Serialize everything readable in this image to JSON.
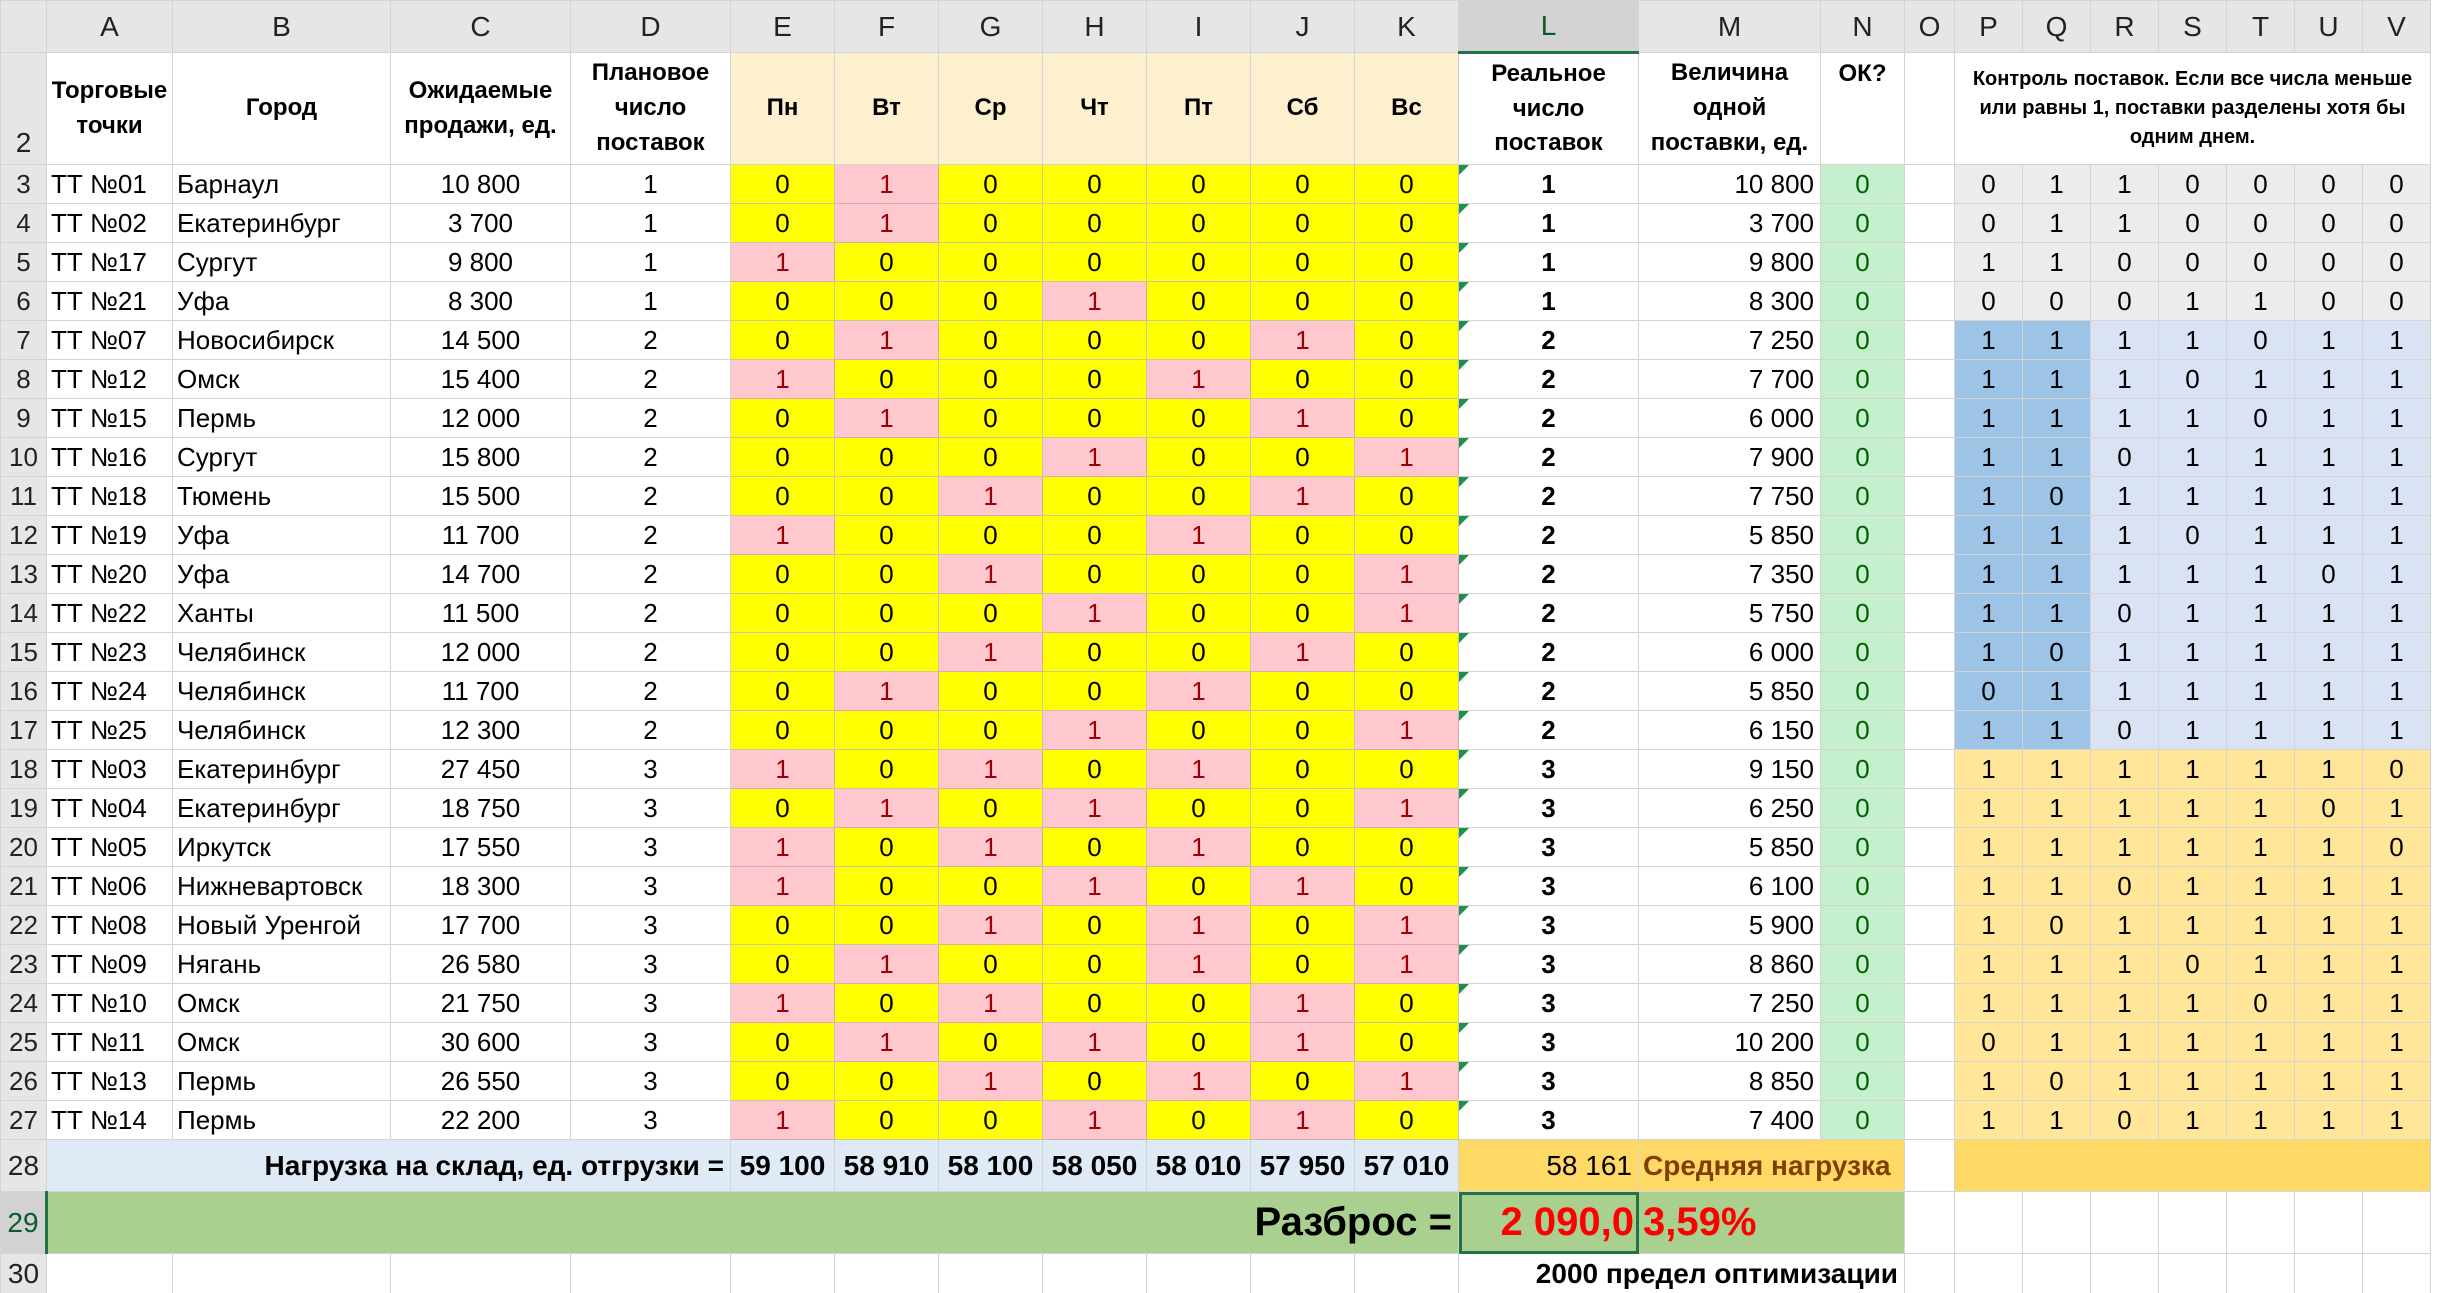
{
  "columns": [
    "A",
    "B",
    "C",
    "D",
    "E",
    "F",
    "G",
    "H",
    "I",
    "J",
    "K",
    "L",
    "M",
    "N",
    "O",
    "P",
    "Q",
    "R",
    "S",
    "T",
    "U",
    "V"
  ],
  "selected_column": "L",
  "header": {
    "row_number": "2",
    "shops": "Торговые точки",
    "city": "Город",
    "expected_sales": "Ожидаемые продажи, ед.",
    "planned": "Плановое число поставок",
    "days": [
      "Пн",
      "Вт",
      "Ср",
      "Чт",
      "Пт",
      "Сб",
      "Вс"
    ],
    "real": "Реальное число поставок",
    "size": "Величина одной поставки, ед.",
    "ok": "ОК?",
    "control": "Контроль поставок. Если все числа меньше или равны 1, поставки разделены хотя бы одним днем."
  },
  "rows": [
    {
      "n": "3",
      "shop": "ТТ №01",
      "city": "Барнаул",
      "sales": "10 800",
      "plan": "1",
      "days": [
        "0",
        "1",
        "0",
        "0",
        "0",
        "0",
        "0"
      ],
      "real": "1",
      "size": "10 800",
      "ok": "0",
      "ctrl": [
        "0",
        "1",
        "1",
        "0",
        "0",
        "0",
        "0"
      ],
      "ctrl_style": "gr"
    },
    {
      "n": "4",
      "shop": "ТТ №02",
      "city": "Екатеринбург",
      "sales": "3 700",
      "plan": "1",
      "days": [
        "0",
        "1",
        "0",
        "0",
        "0",
        "0",
        "0"
      ],
      "real": "1",
      "size": "3 700",
      "ok": "0",
      "ctrl": [
        "0",
        "1",
        "1",
        "0",
        "0",
        "0",
        "0"
      ],
      "ctrl_style": "gr"
    },
    {
      "n": "5",
      "shop": "ТТ №17",
      "city": "Сургут",
      "sales": "9 800",
      "plan": "1",
      "days": [
        "1",
        "0",
        "0",
        "0",
        "0",
        "0",
        "0"
      ],
      "real": "1",
      "size": "9 800",
      "ok": "0",
      "ctrl": [
        "1",
        "1",
        "0",
        "0",
        "0",
        "0",
        "0"
      ],
      "ctrl_style": "gr"
    },
    {
      "n": "6",
      "shop": "ТТ №21",
      "city": "Уфа",
      "sales": "8 300",
      "plan": "1",
      "days": [
        "0",
        "0",
        "0",
        "1",
        "0",
        "0",
        "0"
      ],
      "real": "1",
      "size": "8 300",
      "ok": "0",
      "ctrl": [
        "0",
        "0",
        "0",
        "1",
        "1",
        "0",
        "0"
      ],
      "ctrl_style": "gr"
    },
    {
      "n": "7",
      "shop": "ТТ №07",
      "city": "Новосибирск",
      "sales": "14 500",
      "plan": "2",
      "days": [
        "0",
        "1",
        "0",
        "0",
        "0",
        "1",
        "0"
      ],
      "real": "2",
      "size": "7 250",
      "ok": "0",
      "ctrl": [
        "1",
        "1",
        "1",
        "1",
        "0",
        "1",
        "1"
      ],
      "ctrl_style": "bl"
    },
    {
      "n": "8",
      "shop": "ТТ №12",
      "city": "Омск",
      "sales": "15 400",
      "plan": "2",
      "days": [
        "1",
        "0",
        "0",
        "0",
        "1",
        "0",
        "0"
      ],
      "real": "2",
      "size": "7 700",
      "ok": "0",
      "ctrl": [
        "1",
        "1",
        "1",
        "0",
        "1",
        "1",
        "1"
      ],
      "ctrl_style": "bl"
    },
    {
      "n": "9",
      "shop": "ТТ №15",
      "city": "Пермь",
      "sales": "12 000",
      "plan": "2",
      "days": [
        "0",
        "1",
        "0",
        "0",
        "0",
        "1",
        "0"
      ],
      "real": "2",
      "size": "6 000",
      "ok": "0",
      "ctrl": [
        "1",
        "1",
        "1",
        "1",
        "0",
        "1",
        "1"
      ],
      "ctrl_style": "bl"
    },
    {
      "n": "10",
      "shop": "ТТ №16",
      "city": "Сургут",
      "sales": "15 800",
      "plan": "2",
      "days": [
        "0",
        "0",
        "0",
        "1",
        "0",
        "0",
        "1"
      ],
      "real": "2",
      "size": "7 900",
      "ok": "0",
      "ctrl": [
        "1",
        "1",
        "0",
        "1",
        "1",
        "1",
        "1"
      ],
      "ctrl_style": "bl"
    },
    {
      "n": "11",
      "shop": "ТТ №18",
      "city": "Тюмень",
      "sales": "15 500",
      "plan": "2",
      "days": [
        "0",
        "0",
        "1",
        "0",
        "0",
        "1",
        "0"
      ],
      "real": "2",
      "size": "7 750",
      "ok": "0",
      "ctrl": [
        "1",
        "0",
        "1",
        "1",
        "1",
        "1",
        "1"
      ],
      "ctrl_style": "bl"
    },
    {
      "n": "12",
      "shop": "ТТ №19",
      "city": "Уфа",
      "sales": "11 700",
      "plan": "2",
      "days": [
        "1",
        "0",
        "0",
        "0",
        "1",
        "0",
        "0"
      ],
      "real": "2",
      "size": "5 850",
      "ok": "0",
      "ctrl": [
        "1",
        "1",
        "1",
        "0",
        "1",
        "1",
        "1"
      ],
      "ctrl_style": "bl"
    },
    {
      "n": "13",
      "shop": "ТТ №20",
      "city": "Уфа",
      "sales": "14 700",
      "plan": "2",
      "days": [
        "0",
        "0",
        "1",
        "0",
        "0",
        "0",
        "1"
      ],
      "real": "2",
      "size": "7 350",
      "ok": "0",
      "ctrl": [
        "1",
        "1",
        "1",
        "1",
        "1",
        "0",
        "1"
      ],
      "ctrl_style": "bl"
    },
    {
      "n": "14",
      "shop": "ТТ №22",
      "city": "Ханты",
      "sales": "11 500",
      "plan": "2",
      "days": [
        "0",
        "0",
        "0",
        "1",
        "0",
        "0",
        "1"
      ],
      "real": "2",
      "size": "5 750",
      "ok": "0",
      "ctrl": [
        "1",
        "1",
        "0",
        "1",
        "1",
        "1",
        "1"
      ],
      "ctrl_style": "bl"
    },
    {
      "n": "15",
      "shop": "ТТ №23",
      "city": "Челябинск",
      "sales": "12 000",
      "plan": "2",
      "days": [
        "0",
        "0",
        "1",
        "0",
        "0",
        "1",
        "0"
      ],
      "real": "2",
      "size": "6 000",
      "ok": "0",
      "ctrl": [
        "1",
        "0",
        "1",
        "1",
        "1",
        "1",
        "1"
      ],
      "ctrl_style": "bl"
    },
    {
      "n": "16",
      "shop": "ТТ №24",
      "city": "Челябинск",
      "sales": "11 700",
      "plan": "2",
      "days": [
        "0",
        "1",
        "0",
        "0",
        "1",
        "0",
        "0"
      ],
      "real": "2",
      "size": "5 850",
      "ok": "0",
      "ctrl": [
        "0",
        "1",
        "1",
        "1",
        "1",
        "1",
        "1"
      ],
      "ctrl_style": "bl"
    },
    {
      "n": "17",
      "shop": "ТТ №25",
      "city": "Челябинск",
      "sales": "12 300",
      "plan": "2",
      "days": [
        "0",
        "0",
        "0",
        "1",
        "0",
        "0",
        "1"
      ],
      "real": "2",
      "size": "6 150",
      "ok": "0",
      "ctrl": [
        "1",
        "1",
        "0",
        "1",
        "1",
        "1",
        "1"
      ],
      "ctrl_style": "bl"
    },
    {
      "n": "18",
      "shop": "ТТ №03",
      "city": "Екатеринбург",
      "sales": "27 450",
      "plan": "3",
      "days": [
        "1",
        "0",
        "1",
        "0",
        "1",
        "0",
        "0"
      ],
      "real": "3",
      "size": "9 150",
      "ok": "0",
      "ctrl": [
        "1",
        "1",
        "1",
        "1",
        "1",
        "1",
        "0"
      ],
      "ctrl_style": "yw"
    },
    {
      "n": "19",
      "shop": "ТТ №04",
      "city": "Екатеринбург",
      "sales": "18 750",
      "plan": "3",
      "days": [
        "0",
        "1",
        "0",
        "1",
        "0",
        "0",
        "1"
      ],
      "real": "3",
      "size": "6 250",
      "ok": "0",
      "ctrl": [
        "1",
        "1",
        "1",
        "1",
        "1",
        "0",
        "1"
      ],
      "ctrl_style": "yw"
    },
    {
      "n": "20",
      "shop": "ТТ №05",
      "city": "Иркутск",
      "sales": "17 550",
      "plan": "3",
      "days": [
        "1",
        "0",
        "1",
        "0",
        "1",
        "0",
        "0"
      ],
      "real": "3",
      "size": "5 850",
      "ok": "0",
      "ctrl": [
        "1",
        "1",
        "1",
        "1",
        "1",
        "1",
        "0"
      ],
      "ctrl_style": "yw"
    },
    {
      "n": "21",
      "shop": "ТТ №06",
      "city": "Нижневартовск",
      "sales": "18 300",
      "plan": "3",
      "days": [
        "1",
        "0",
        "0",
        "1",
        "0",
        "1",
        "0"
      ],
      "real": "3",
      "size": "6 100",
      "ok": "0",
      "ctrl": [
        "1",
        "1",
        "0",
        "1",
        "1",
        "1",
        "1"
      ],
      "ctrl_style": "yw"
    },
    {
      "n": "22",
      "shop": "ТТ №08",
      "city": "Новый Уренгой",
      "sales": "17 700",
      "plan": "3",
      "days": [
        "0",
        "0",
        "1",
        "0",
        "1",
        "0",
        "1"
      ],
      "real": "3",
      "size": "5 900",
      "ok": "0",
      "ctrl": [
        "1",
        "0",
        "1",
        "1",
        "1",
        "1",
        "1"
      ],
      "ctrl_style": "yw"
    },
    {
      "n": "23",
      "shop": "ТТ №09",
      "city": "Нягань",
      "sales": "26 580",
      "plan": "3",
      "days": [
        "0",
        "1",
        "0",
        "0",
        "1",
        "0",
        "1"
      ],
      "real": "3",
      "size": "8 860",
      "ok": "0",
      "ctrl": [
        "1",
        "1",
        "1",
        "0",
        "1",
        "1",
        "1"
      ],
      "ctrl_style": "yw"
    },
    {
      "n": "24",
      "shop": "ТТ №10",
      "city": "Омск",
      "sales": "21 750",
      "plan": "3",
      "days": [
        "1",
        "0",
        "1",
        "0",
        "0",
        "1",
        "0"
      ],
      "real": "3",
      "size": "7 250",
      "ok": "0",
      "ctrl": [
        "1",
        "1",
        "1",
        "1",
        "0",
        "1",
        "1"
      ],
      "ctrl_style": "yw"
    },
    {
      "n": "25",
      "shop": "ТТ №11",
      "city": "Омск",
      "sales": "30 600",
      "plan": "3",
      "days": [
        "0",
        "1",
        "0",
        "1",
        "0",
        "1",
        "0"
      ],
      "real": "3",
      "size": "10 200",
      "ok": "0",
      "ctrl": [
        "0",
        "1",
        "1",
        "1",
        "1",
        "1",
        "1"
      ],
      "ctrl_style": "yw"
    },
    {
      "n": "26",
      "shop": "ТТ №13",
      "city": "Пермь",
      "sales": "26 550",
      "plan": "3",
      "days": [
        "0",
        "0",
        "1",
        "0",
        "1",
        "0",
        "1"
      ],
      "real": "3",
      "size": "8 850",
      "ok": "0",
      "ctrl": [
        "1",
        "0",
        "1",
        "1",
        "1",
        "1",
        "1"
      ],
      "ctrl_style": "yw"
    },
    {
      "n": "27",
      "shop": "ТТ №14",
      "city": "Пермь",
      "sales": "22 200",
      "plan": "3",
      "days": [
        "1",
        "0",
        "0",
        "1",
        "0",
        "1",
        "0"
      ],
      "real": "3",
      "size": "7 400",
      "ok": "0",
      "ctrl": [
        "1",
        "1",
        "0",
        "1",
        "1",
        "1",
        "1"
      ],
      "ctrl_style": "yw"
    }
  ],
  "totals": {
    "row_number": "28",
    "label": "Нагрузка на склад, ед. отгрузки =",
    "values": [
      "59 100",
      "58 910",
      "58 100",
      "58 050",
      "58 010",
      "57 950",
      "57 010"
    ],
    "average": "58 161",
    "average_label": "Средняя нагрузка"
  },
  "spread": {
    "row_number": "29",
    "label": "Разброс =",
    "value": "2 090,0",
    "percent": "3,59%"
  },
  "limit": {
    "row_number": "30",
    "text": "2000 предел оптимизации"
  },
  "colors": {
    "day_zero": "#ffff00",
    "day_one": "#ffc7ce",
    "ok_fill": "#c6efce",
    "spread_fill": "#a9d08e",
    "average_fill": "#ffd966",
    "selection": "#217346"
  }
}
